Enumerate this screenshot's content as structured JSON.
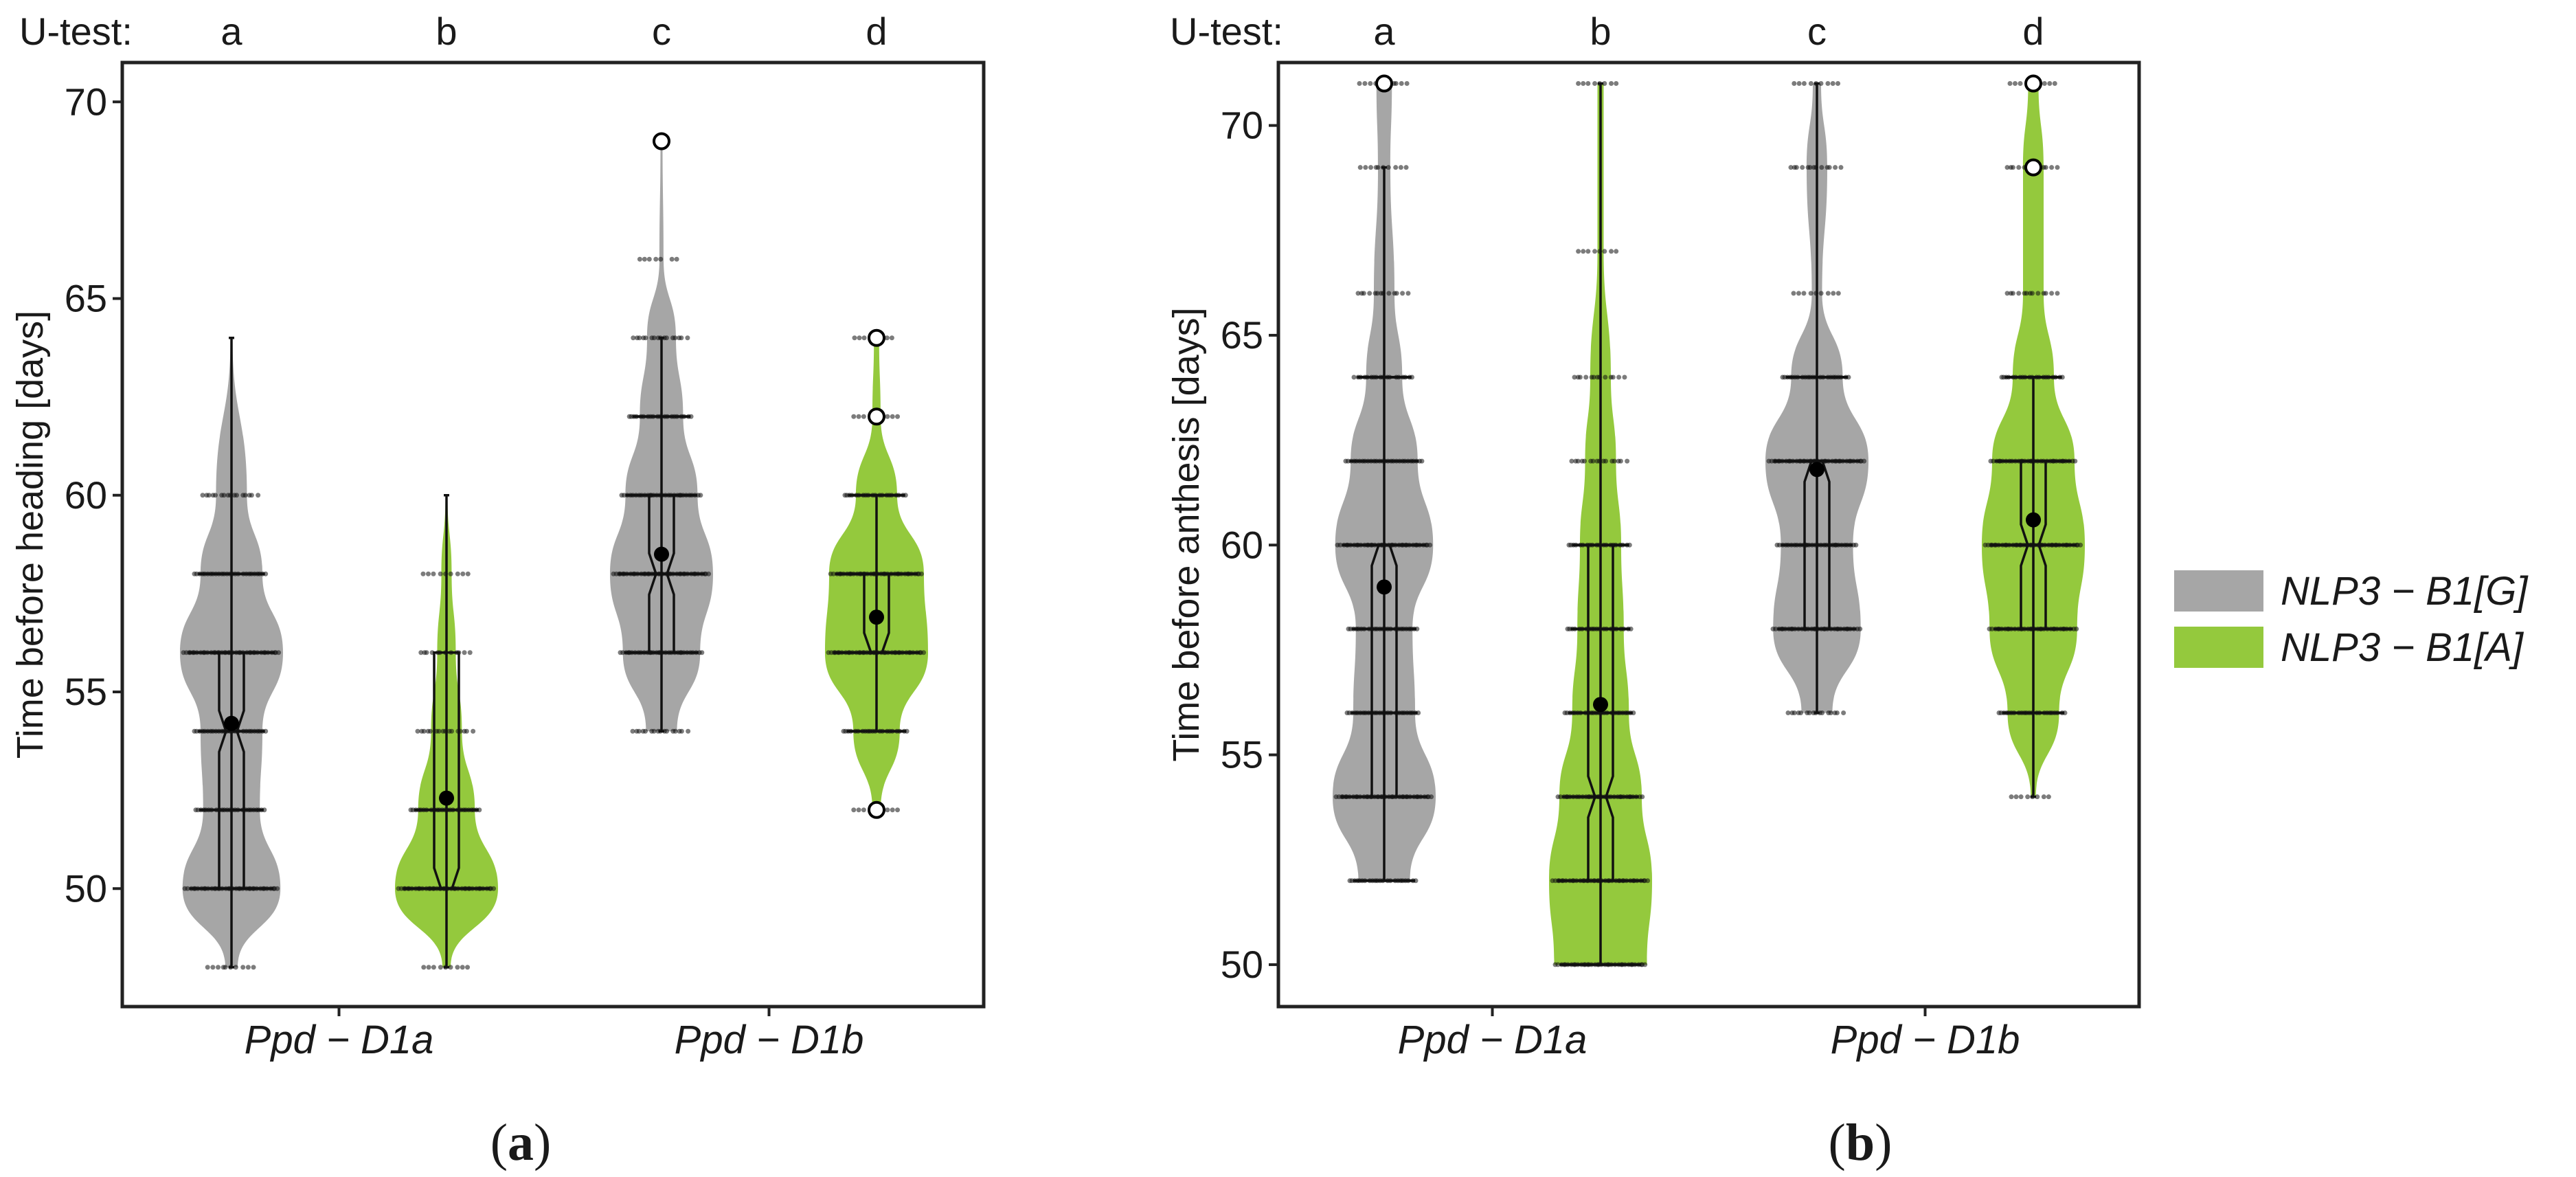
{
  "colors": {
    "G": "#a6a6a6",
    "A": "#94c93d",
    "axis": "#222222"
  },
  "legend": [
    {
      "key": "G",
      "label": "NLP3 − B1[G]"
    },
    {
      "key": "A",
      "label": "NLP3 − B1[A]"
    }
  ],
  "chart_data": [
    {
      "type": "violin",
      "panel_label": "a",
      "ylabel": "Time before heading [days]",
      "ylim": [
        47,
        71
      ],
      "yticks": [
        50,
        55,
        60,
        65,
        70
      ],
      "utest_prefix": "U-test:",
      "categories": [
        "Ppd − D1a",
        "Ppd − D1b"
      ],
      "groups": [
        {
          "category": "Ppd − D1a",
          "allele": "G",
          "utest": "a",
          "mean": 54.2,
          "median": 54,
          "q1": 50,
          "q3": 56,
          "whisker_low": 48,
          "whisker_high": 64,
          "levels": [
            48,
            50,
            52,
            54,
            56,
            58,
            60,
            64
          ],
          "density": [
            0.12,
            0.95,
            0.55,
            0.6,
            1.0,
            0.6,
            0.3,
            0.02
          ],
          "outliers": []
        },
        {
          "category": "Ppd − D1a",
          "allele": "A",
          "utest": "b",
          "mean": 52.3,
          "median": 50,
          "q1": 50,
          "q3": 56,
          "whisker_low": 48,
          "whisker_high": 60,
          "levels": [
            48,
            50,
            52,
            54,
            56,
            58,
            60
          ],
          "density": [
            0.08,
            1.0,
            0.55,
            0.3,
            0.18,
            0.1,
            0.02
          ],
          "outliers": []
        },
        {
          "category": "Ppd − D1b",
          "allele": "G",
          "utest": "c",
          "mean": 58.5,
          "median": 58,
          "q1": 56,
          "q3": 60,
          "whisker_low": 54,
          "whisker_high": 64,
          "levels": [
            54,
            56,
            58,
            60,
            62,
            64,
            66,
            69
          ],
          "density": [
            0.3,
            0.75,
            1.0,
            0.7,
            0.42,
            0.28,
            0.04,
            0.005
          ],
          "outliers": [
            69
          ]
        },
        {
          "category": "Ppd − D1b",
          "allele": "A",
          "utest": "d",
          "mean": 56.9,
          "median": 56,
          "q1": 56,
          "q3": 58,
          "whisker_low": 54,
          "whisker_high": 60,
          "levels": [
            52,
            54,
            56,
            58,
            60,
            62,
            64
          ],
          "density": [
            0.08,
            0.45,
            1.0,
            0.92,
            0.4,
            0.08,
            0.05
          ],
          "outliers": [
            52,
            62,
            64
          ]
        }
      ]
    },
    {
      "type": "violin",
      "panel_label": "b",
      "ylabel": "Time before anthesis [days]",
      "ylim": [
        49,
        71.5
      ],
      "yticks": [
        50,
        55,
        60,
        65,
        70
      ],
      "utest_prefix": "U-test:",
      "categories": [
        "Ppd − D1a",
        "Ppd − D1b"
      ],
      "groups": [
        {
          "category": "Ppd − D1a",
          "allele": "G",
          "utest": "a",
          "mean": 59.0,
          "median": 60,
          "q1": 54,
          "q3": 60,
          "whisker_low": 52,
          "whisker_high": 69,
          "levels": [
            52,
            54,
            56,
            58,
            60,
            62,
            64,
            66,
            69,
            71
          ],
          "density": [
            0.5,
            1.0,
            0.6,
            0.55,
            0.95,
            0.65,
            0.35,
            0.2,
            0.12,
            0.15
          ],
          "outliers": [
            71
          ]
        },
        {
          "category": "Ppd − D1a",
          "allele": "A",
          "utest": "b",
          "mean": 56.2,
          "median": 54,
          "q1": 52,
          "q3": 60,
          "whisker_low": 50,
          "whisker_high": 71,
          "levels": [
            50,
            52,
            54,
            56,
            58,
            60,
            62,
            64,
            67,
            71
          ],
          "density": [
            0.9,
            1.0,
            0.8,
            0.55,
            0.45,
            0.4,
            0.3,
            0.2,
            0.06,
            0.06
          ],
          "outliers": []
        },
        {
          "category": "Ppd − D1b",
          "allele": "G",
          "utest": "c",
          "mean": 61.8,
          "median": 62,
          "q1": 58,
          "q3": 62,
          "whisker_low": 56,
          "whisker_high": 71,
          "levels": [
            56,
            58,
            60,
            62,
            64,
            66,
            69,
            71
          ],
          "density": [
            0.3,
            0.85,
            0.7,
            1.0,
            0.5,
            0.1,
            0.2,
            0.08
          ],
          "outliers": []
        },
        {
          "category": "Ppd − D1b",
          "allele": "A",
          "utest": "d",
          "mean": 60.6,
          "median": 60,
          "q1": 58,
          "q3": 62,
          "whisker_low": 54,
          "whisker_high": 64,
          "levels": [
            54,
            56,
            58,
            60,
            62,
            64,
            66,
            69,
            71
          ],
          "density": [
            0.05,
            0.5,
            0.85,
            1.0,
            0.8,
            0.4,
            0.2,
            0.2,
            0.1
          ],
          "outliers": [
            69,
            71
          ]
        }
      ]
    }
  ]
}
